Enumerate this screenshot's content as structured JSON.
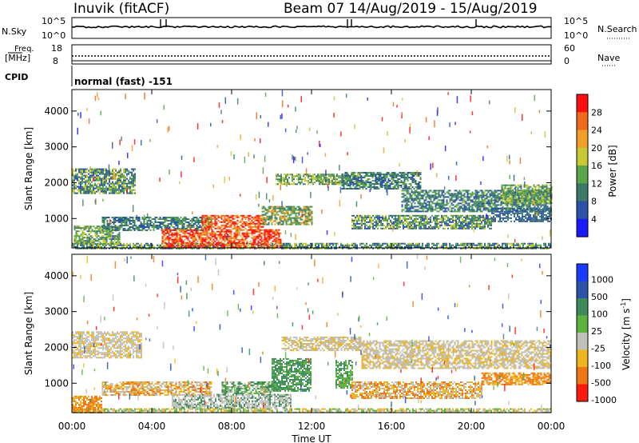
{
  "header": {
    "station": "Inuvik (fitACF)",
    "beam_dates": "Beam 07  14/Aug/2019 - 15/Aug/2019"
  },
  "top_panels": {
    "nsky_label": "N.Sky",
    "nsearch_label": "N.Search",
    "nsky_ticks": [
      "10^5",
      "10^0"
    ],
    "nsearch_ticks": [
      "10^5",
      "10^0"
    ],
    "freq_label_line1": "Freq.",
    "freq_label_line2": "[MHz]",
    "freq_ticks": [
      "18",
      "8"
    ],
    "nave_label": "Nave",
    "nave_ticks": [
      "60",
      "0"
    ],
    "cpid_label": "CPID",
    "cpid_value": "normal (fast) -151"
  },
  "chart_data": [
    {
      "type": "heatmap",
      "name": "power-panel",
      "ylabel": "Slant Range [km]",
      "yticks": [
        "1000",
        "2000",
        "3000",
        "4000"
      ],
      "ylim": [
        180,
        4600
      ],
      "xlim": [
        0,
        24
      ],
      "xticks": [
        "00:00",
        "04:00",
        "08:00",
        "12:00",
        "16:00",
        "20:00",
        "00:00"
      ],
      "colorbar_label": "Power [dB]",
      "colorbar_ticks": [
        "4",
        "8",
        "12",
        "16",
        "20",
        "24",
        "28"
      ],
      "colorbar_colors": [
        "#1a1aff",
        "#2a52a8",
        "#3d7a6a",
        "#5aa64a",
        "#c8c832",
        "#f0a028",
        "#f06a1a",
        "#ff1010"
      ],
      "bands": [
        {
          "t0": 0.0,
          "t1": 24.0,
          "r0": 180,
          "r1": 320,
          "colors": [
            "#5aa64a",
            "#3d7a6a",
            "#c8c832",
            "#2a52a8"
          ]
        },
        {
          "t0": 0.0,
          "t1": 3.2,
          "r0": 1700,
          "r1": 2400,
          "colors": [
            "#3d7a6a",
            "#5aa64a",
            "#c8c832",
            "#2a52a8"
          ]
        },
        {
          "t0": 0.1,
          "t1": 2.4,
          "r0": 300,
          "r1": 800,
          "colors": [
            "#3d7a6a",
            "#5aa64a",
            "#c8c832"
          ]
        },
        {
          "t0": 1.5,
          "t1": 7.0,
          "r0": 650,
          "r1": 1050,
          "colors": [
            "#3d7a6a",
            "#5aa64a",
            "#2a52a8"
          ]
        },
        {
          "t0": 4.5,
          "t1": 10.5,
          "r0": 200,
          "r1": 700,
          "colors": [
            "#ff1010",
            "#f06a1a",
            "#ff1010",
            "#f0a028"
          ]
        },
        {
          "t0": 6.5,
          "t1": 9.6,
          "r0": 700,
          "r1": 1100,
          "colors": [
            "#f06a1a",
            "#ff1010",
            "#f0a028"
          ]
        },
        {
          "t0": 9.5,
          "t1": 12.0,
          "r0": 850,
          "r1": 1350,
          "colors": [
            "#f0a028",
            "#5aa64a",
            "#3d7a6a"
          ]
        },
        {
          "t0": 10.2,
          "t1": 14.5,
          "r0": 1950,
          "r1": 2250,
          "colors": [
            "#3d7a6a",
            "#5aa64a",
            "#c8c832"
          ]
        },
        {
          "t0": 13.5,
          "t1": 17.5,
          "r0": 1850,
          "r1": 2300,
          "colors": [
            "#2a52a8",
            "#3d7a6a",
            "#5aa64a"
          ]
        },
        {
          "t0": 14.0,
          "t1": 21.0,
          "r0": 700,
          "r1": 1100,
          "colors": [
            "#3d7a6a",
            "#5aa64a",
            "#c8c832",
            "#2a52a8"
          ]
        },
        {
          "t0": 16.5,
          "t1": 24.0,
          "r0": 1200,
          "r1": 1800,
          "colors": [
            "#3d7a6a",
            "#5aa64a",
            "#2a52a8"
          ]
        },
        {
          "t0": 21.5,
          "t1": 24.0,
          "r0": 1450,
          "r1": 1950,
          "colors": [
            "#3d7a6a",
            "#5aa64a",
            "#c8c832"
          ]
        },
        {
          "t0": 21.0,
          "t1": 24.0,
          "r0": 900,
          "r1": 1300,
          "colors": [
            "#2a52a8",
            "#3d7a6a"
          ]
        }
      ]
    },
    {
      "type": "heatmap",
      "name": "velocity-panel",
      "ylabel": "Slant Range [km]",
      "yticks": [
        "1000",
        "2000",
        "3000",
        "4000"
      ],
      "ylim": [
        180,
        4600
      ],
      "xlim": [
        0,
        24
      ],
      "xticks": [
        "00:00",
        "04:00",
        "08:00",
        "12:00",
        "16:00",
        "20:00",
        "00:00"
      ],
      "xlabel": "Time UT",
      "colorbar_label": "Velocity [m s^-1]",
      "colorbar_ticks": [
        "1000",
        "500",
        "100",
        "25",
        "-25",
        "-100",
        "-500",
        "-1000"
      ],
      "colorbar_colors": [
        "#1a3aff",
        "#2a52a8",
        "#3d8a5a",
        "#5ab43c",
        "#c0c0b8",
        "#f0b41e",
        "#f07814",
        "#ff1a10"
      ],
      "bands": [
        {
          "t0": 0.0,
          "t1": 24.0,
          "r0": 180,
          "r1": 300,
          "colors": [
            "#c0c0b8",
            "#5ab43c",
            "#f0b41e"
          ]
        },
        {
          "t0": 0.0,
          "t1": 3.5,
          "r0": 1700,
          "r1": 2450,
          "colors": [
            "#c0c0b8",
            "#c0c0b8",
            "#f0b41e"
          ]
        },
        {
          "t0": 0.0,
          "t1": 1.5,
          "r0": 200,
          "r1": 650,
          "colors": [
            "#f07814",
            "#f0b41e",
            "#f07814"
          ]
        },
        {
          "t0": 1.5,
          "t1": 7.0,
          "r0": 650,
          "r1": 1050,
          "colors": [
            "#f0b41e",
            "#f07814",
            "#c0c0b8"
          ]
        },
        {
          "t0": 5.0,
          "t1": 11.0,
          "r0": 300,
          "r1": 700,
          "colors": [
            "#c0c0b8",
            "#3d8a5a",
            "#c0c0b8"
          ]
        },
        {
          "t0": 7.5,
          "t1": 10.0,
          "r0": 700,
          "r1": 1050,
          "colors": [
            "#3d8a5a",
            "#5ab43c",
            "#c0c0b8"
          ]
        },
        {
          "t0": 10.0,
          "t1": 12.0,
          "r0": 800,
          "r1": 1700,
          "colors": [
            "#3d8a5a",
            "#3d8a5a",
            "#5ab43c"
          ]
        },
        {
          "t0": 10.5,
          "t1": 14.5,
          "r0": 1900,
          "r1": 2300,
          "colors": [
            "#c0c0b8",
            "#c0c0b8",
            "#f0b41e"
          ]
        },
        {
          "t0": 13.2,
          "t1": 14.0,
          "r0": 850,
          "r1": 1650,
          "colors": [
            "#3d8a5a",
            "#5ab43c"
          ]
        },
        {
          "t0": 14.0,
          "t1": 20.5,
          "r0": 600,
          "r1": 1050,
          "colors": [
            "#f0b41e",
            "#f07814",
            "#c0c0b8"
          ]
        },
        {
          "t0": 14.5,
          "t1": 24.0,
          "r0": 1400,
          "r1": 2200,
          "colors": [
            "#c0c0b8",
            "#c0c0b8",
            "#f0b41e"
          ]
        },
        {
          "t0": 20.5,
          "t1": 24.0,
          "r0": 950,
          "r1": 1300,
          "colors": [
            "#f07814",
            "#f0b41e",
            "#f07814"
          ]
        }
      ]
    }
  ]
}
